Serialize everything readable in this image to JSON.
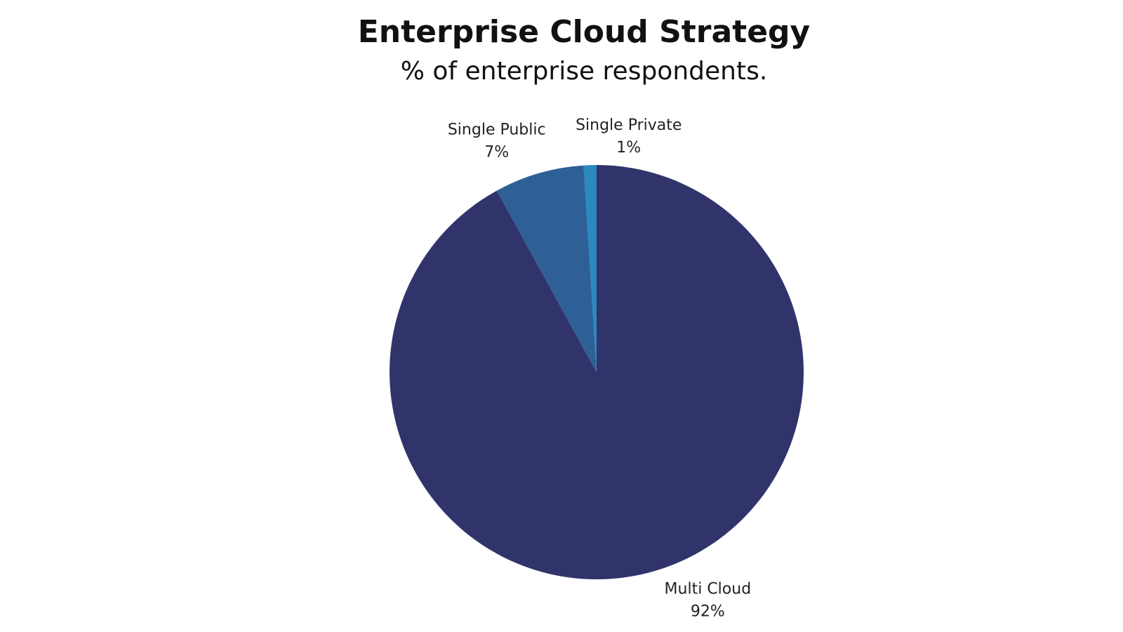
{
  "chart_data": {
    "type": "pie",
    "title": "Enterprise Cloud Strategy",
    "subtitle": "% of enterprise respondents.",
    "slices": [
      {
        "name": "Multi Cloud",
        "value": 92,
        "value_label": "92%",
        "color": "#31346b"
      },
      {
        "name": "Single Public",
        "value": 7,
        "value_label": "7%",
        "color": "#2e5f96"
      },
      {
        "name": "Single Private",
        "value": 1,
        "value_label": "1%",
        "color": "#2a8ac0"
      }
    ],
    "start_angle": "12 o'clock",
    "direction": "clockwise",
    "legend": "none"
  }
}
